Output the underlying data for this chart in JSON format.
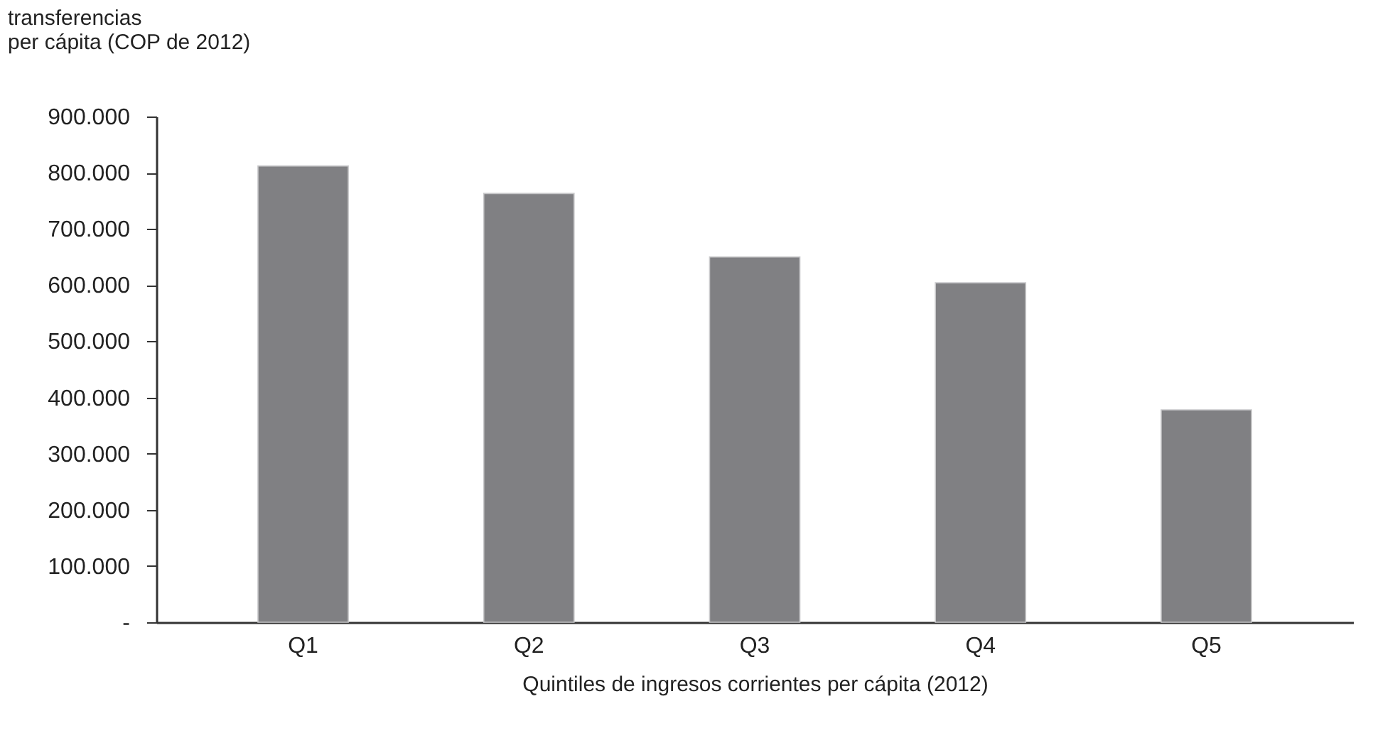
{
  "chart_data": {
    "type": "bar",
    "ylabel": "transferencias\nper cápita (COP de 2012)",
    "xlabel": "Quintiles de ingresos corrientes per cápita (2012)",
    "categories": [
      "Q1",
      "Q2",
      "Q3",
      "Q4",
      "Q5"
    ],
    "values": [
      812000,
      763000,
      650000,
      604000,
      378000
    ],
    "color": "#808083",
    "ylim": [
      0,
      900000
    ],
    "yticks": [
      {
        "value": 0,
        "label": "-"
      },
      {
        "value": 100000,
        "label": "100.000"
      },
      {
        "value": 200000,
        "label": "200.000"
      },
      {
        "value": 300000,
        "label": "300.000"
      },
      {
        "value": 400000,
        "label": "400.000"
      },
      {
        "value": 500000,
        "label": "500.000"
      },
      {
        "value": 600000,
        "label": "600.000"
      },
      {
        "value": 700000,
        "label": "700.000"
      },
      {
        "value": 800000,
        "label": "800.000"
      },
      {
        "value": 900000,
        "label": "900.000"
      }
    ],
    "grid": false,
    "legend": false
  }
}
